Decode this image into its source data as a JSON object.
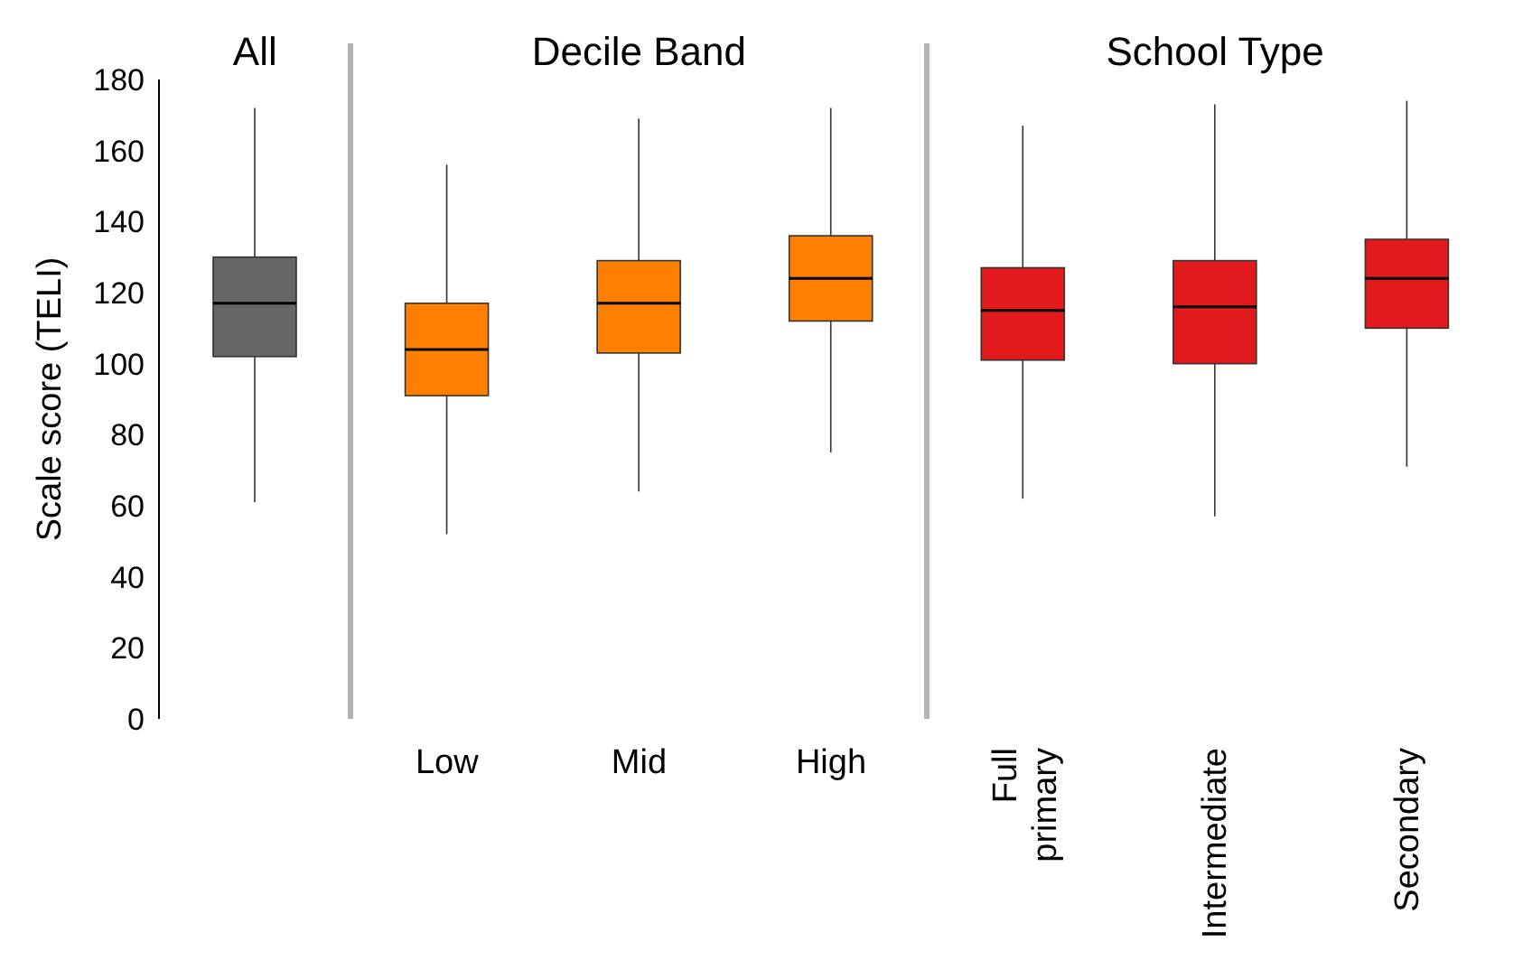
{
  "chart_data": {
    "type": "box",
    "ylabel": "Scale score (TELI)",
    "categories": [
      null,
      "Low",
      "Mid",
      "High",
      "Full primary",
      "Intermediate",
      "Secondary"
    ],
    "colors": [
      "#666666",
      "#ff8000",
      "#ff8000",
      "#ff8000",
      "#e31a1c",
      "#e31a1c",
      "#e31a1c"
    ],
    "boxes": [
      {
        "low": 61,
        "q1": 102,
        "median": 117,
        "q3": 130,
        "high": 172
      },
      {
        "low": 52,
        "q1": 91,
        "median": 104,
        "q3": 117,
        "high": 156
      },
      {
        "low": 64,
        "q1": 103,
        "median": 117,
        "q3": 129,
        "high": 169
      },
      {
        "low": 75,
        "q1": 112,
        "median": 124,
        "q3": 136,
        "high": 172
      },
      {
        "low": 62,
        "q1": 101,
        "median": 115,
        "q3": 127,
        "high": 167
      },
      {
        "low": 57,
        "q1": 100,
        "median": 116,
        "q3": 129,
        "high": 173
      },
      {
        "low": 71,
        "q1": 110,
        "median": 124,
        "q3": 135,
        "high": 174
      }
    ],
    "annotations": [
      "All",
      "Decile Band",
      "School Type"
    ],
    "ylim": [
      0,
      180
    ],
    "yticks": [
      0,
      20,
      40,
      60,
      80,
      100,
      120,
      140,
      160,
      180
    ],
    "grid": false,
    "legend": false
  }
}
